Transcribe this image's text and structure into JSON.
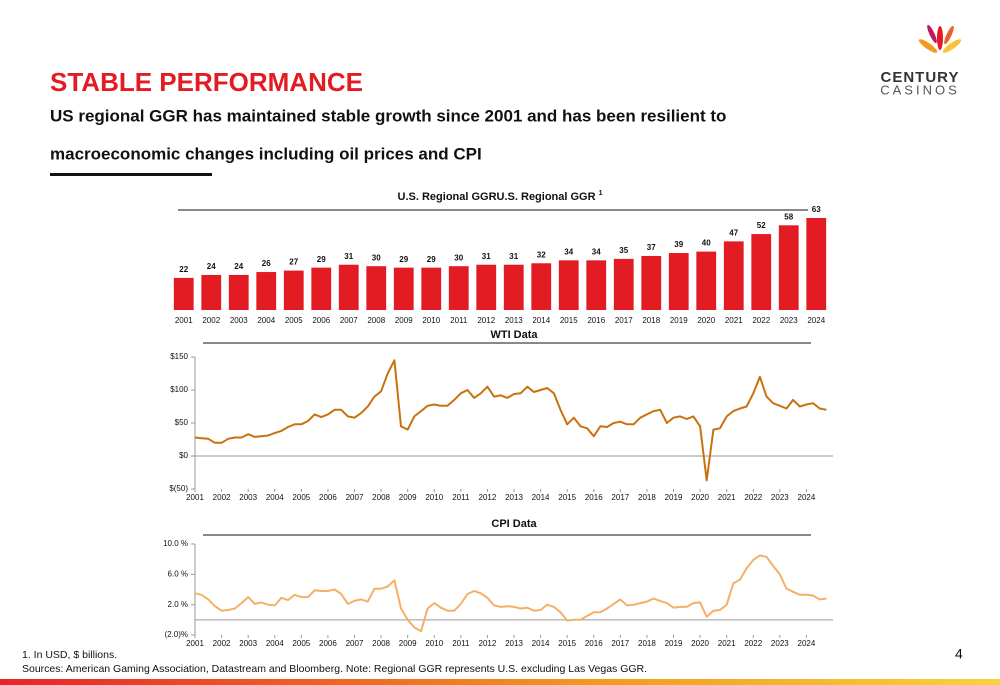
{
  "header": {
    "title": "STABLE PERFORMANCE",
    "subtitle_lines": [
      "US regional GGR has maintained stable growth since 2001 and has been resilient to",
      "macroeconomic changes including oil prices and CPI"
    ]
  },
  "logo": {
    "top": "CENTURY",
    "bottom": "CASINOS"
  },
  "chart_data": [
    {
      "type": "bar",
      "title": "U.S. Regional GGR",
      "title_superscript": "1",
      "color": "#e31b23",
      "categories": [
        "2001",
        "2002",
        "2003",
        "2004",
        "2005",
        "2006",
        "2007",
        "2008",
        "2009",
        "2010",
        "2011",
        "2012",
        "2013",
        "2014",
        "2015",
        "2016",
        "2017",
        "2018",
        "2019",
        "2020",
        "2021",
        "2022",
        "2023",
        "2024"
      ],
      "values": [
        22,
        24,
        24,
        26,
        27,
        29,
        31,
        30,
        29,
        29,
        30,
        31,
        31,
        32,
        34,
        34,
        35,
        37,
        39,
        40,
        47,
        52,
        58,
        63
      ]
    },
    {
      "type": "line",
      "title": "WTI Data",
      "color": "#c8720f",
      "x": [
        2001,
        2001.25,
        2001.5,
        2001.75,
        2002,
        2002.25,
        2002.5,
        2002.75,
        2003,
        2003.25,
        2003.5,
        2003.75,
        2004,
        2004.25,
        2004.5,
        2004.75,
        2005,
        2005.25,
        2005.5,
        2005.75,
        2006,
        2006.25,
        2006.5,
        2006.75,
        2007,
        2007.25,
        2007.5,
        2007.75,
        2008,
        2008.25,
        2008.5,
        2008.75,
        2009,
        2009.25,
        2009.5,
        2009.75,
        2010,
        2010.25,
        2010.5,
        2010.75,
        2011,
        2011.25,
        2011.5,
        2011.75,
        2012,
        2012.25,
        2012.5,
        2012.75,
        2013,
        2013.25,
        2013.5,
        2013.75,
        2014,
        2014.25,
        2014.5,
        2014.75,
        2015,
        2015.25,
        2015.5,
        2015.75,
        2016,
        2016.25,
        2016.5,
        2016.75,
        2017,
        2017.25,
        2017.5,
        2017.75,
        2018,
        2018.25,
        2018.5,
        2018.75,
        2019,
        2019.25,
        2019.5,
        2019.75,
        2020,
        2020.25,
        2020.5,
        2020.75,
        2021,
        2021.25,
        2021.5,
        2021.75,
        2022,
        2022.25,
        2022.5,
        2022.75,
        2023,
        2023.25,
        2023.5,
        2023.75,
        2024,
        2024.25,
        2024.5,
        2024.75
      ],
      "values": [
        28,
        27,
        26,
        20,
        20,
        26,
        28,
        28,
        33,
        29,
        30,
        31,
        35,
        38,
        44,
        48,
        48,
        53,
        63,
        59,
        63,
        70,
        70,
        60,
        58,
        65,
        75,
        90,
        98,
        125,
        145,
        45,
        40,
        60,
        68,
        76,
        78,
        76,
        76,
        85,
        95,
        100,
        88,
        95,
        105,
        90,
        92,
        88,
        94,
        95,
        105,
        97,
        100,
        103,
        95,
        70,
        48,
        58,
        45,
        42,
        30,
        45,
        44,
        50,
        52,
        48,
        48,
        58,
        63,
        68,
        70,
        50,
        58,
        60,
        56,
        60,
        45,
        -37,
        40,
        42,
        60,
        68,
        72,
        75,
        95,
        120,
        90,
        80,
        76,
        72,
        85,
        75,
        78,
        80,
        72,
        70
      ],
      "xlim": [
        2001,
        2025
      ],
      "xticks": [
        2001,
        2002,
        2003,
        2004,
        2005,
        2006,
        2007,
        2008,
        2009,
        2010,
        2011,
        2012,
        2013,
        2014,
        2015,
        2016,
        2017,
        2018,
        2019,
        2020,
        2021,
        2022,
        2023,
        2024
      ],
      "ylim": [
        -50,
        150
      ],
      "yticks": [
        {
          "value": -50,
          "label": "$(50)"
        },
        {
          "value": 0,
          "label": "$0"
        },
        {
          "value": 50,
          "label": "$50"
        },
        {
          "value": 100,
          "label": "$100"
        },
        {
          "value": 150,
          "label": "$150"
        }
      ]
    },
    {
      "type": "line",
      "title": "CPI Data",
      "color": "#f5b067",
      "x": [
        2001,
        2001.25,
        2001.5,
        2001.75,
        2002,
        2002.25,
        2002.5,
        2002.75,
        2003,
        2003.25,
        2003.5,
        2003.75,
        2004,
        2004.25,
        2004.5,
        2004.75,
        2005,
        2005.25,
        2005.5,
        2005.75,
        2006,
        2006.25,
        2006.5,
        2006.75,
        2007,
        2007.25,
        2007.5,
        2007.75,
        2008,
        2008.25,
        2008.5,
        2008.75,
        2009,
        2009.25,
        2009.5,
        2009.75,
        2010,
        2010.25,
        2010.5,
        2010.75,
        2011,
        2011.25,
        2011.5,
        2011.75,
        2012,
        2012.25,
        2012.5,
        2012.75,
        2013,
        2013.25,
        2013.5,
        2013.75,
        2014,
        2014.25,
        2014.5,
        2014.75,
        2015,
        2015.25,
        2015.5,
        2015.75,
        2016,
        2016.25,
        2016.5,
        2016.75,
        2017,
        2017.25,
        2017.5,
        2017.75,
        2018,
        2018.25,
        2018.5,
        2018.75,
        2019,
        2019.25,
        2019.5,
        2019.75,
        2020,
        2020.25,
        2020.5,
        2020.75,
        2021,
        2021.25,
        2021.5,
        2021.75,
        2022,
        2022.25,
        2022.5,
        2022.75,
        2023,
        2023.25,
        2023.5,
        2023.75,
        2024,
        2024.25,
        2024.5,
        2024.75
      ],
      "values": [
        3.5,
        3.3,
        2.7,
        1.8,
        1.2,
        1.3,
        1.5,
        2.2,
        3.0,
        2.1,
        2.3,
        2.0,
        1.9,
        2.9,
        2.6,
        3.3,
        3.0,
        3.0,
        3.9,
        3.8,
        3.8,
        4.0,
        3.4,
        2.1,
        2.5,
        2.7,
        2.4,
        4.1,
        4.1,
        4.4,
        5.2,
        1.5,
        0.0,
        -1.0,
        -1.5,
        1.5,
        2.2,
        1.6,
        1.2,
        1.2,
        2.1,
        3.4,
        3.8,
        3.5,
        2.9,
        1.9,
        1.7,
        1.8,
        1.7,
        1.5,
        1.6,
        1.2,
        1.3,
        2.0,
        1.7,
        1.0,
        -0.1,
        0.0,
        0.0,
        0.5,
        1.0,
        1.0,
        1.5,
        2.1,
        2.7,
        1.9,
        2.0,
        2.2,
        2.4,
        2.8,
        2.5,
        2.2,
        1.6,
        1.7,
        1.7,
        2.2,
        2.3,
        0.4,
        1.2,
        1.3,
        2.0,
        4.8,
        5.3,
        6.8,
        7.9,
        8.5,
        8.3,
        7.1,
        6.0,
        4.1,
        3.7,
        3.3,
        3.3,
        3.2,
        2.7,
        2.8
      ],
      "xlim": [
        2001,
        2025
      ],
      "xticks": [
        2001,
        2002,
        2003,
        2004,
        2005,
        2006,
        2007,
        2008,
        2009,
        2010,
        2011,
        2012,
        2013,
        2014,
        2015,
        2016,
        2017,
        2018,
        2019,
        2020,
        2021,
        2022,
        2023,
        2024
      ],
      "ylim": [
        -2,
        10
      ],
      "yticks": [
        {
          "value": -2,
          "label": "(2.0)%"
        },
        {
          "value": 2,
          "label": "2.0 %"
        },
        {
          "value": 6,
          "label": "6.0 %"
        },
        {
          "value": 10,
          "label": "10.0 %"
        }
      ]
    }
  ],
  "footer": {
    "notes": [
      "1. In USD, $ billions.",
      "Sources: American Gaming Association, Datastream and Bloomberg. Note: Regional GGR represents U.S. excluding Las Vegas GGR."
    ],
    "page_number": "4"
  }
}
